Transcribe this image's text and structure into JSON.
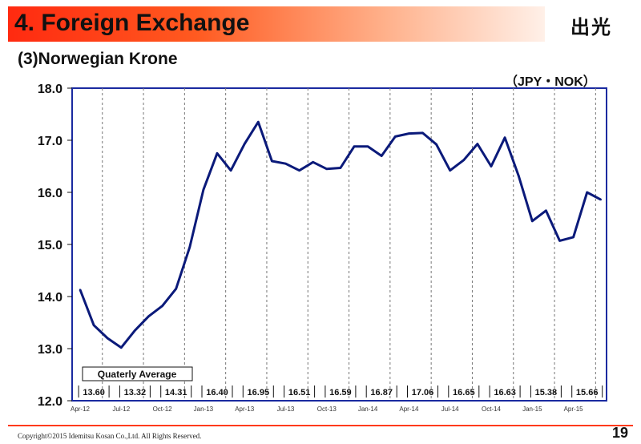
{
  "header": {
    "title": "4. Foreign Exchange",
    "logo_text": "出光"
  },
  "subtitle": "(3)Norwegian Krone",
  "footer": {
    "copyright": "Copyright©2015 Idemitsu Kosan Co.,Ltd. All Rights Reserved.",
    "page_number": "19"
  },
  "colors": {
    "line": "#0b1a7a",
    "frame": "#1a2aa0",
    "header_red": "#ff2a10"
  },
  "chart_data": {
    "type": "line",
    "title": "(3)Norwegian Krone",
    "unit_label": "（JPY・NOK）",
    "ylim": [
      12.0,
      18.0
    ],
    "y_ticks": [
      "12.0",
      "13.0",
      "14.0",
      "15.0",
      "16.0",
      "17.0",
      "18.0"
    ],
    "x_tick_labels": [
      "Apr-12",
      "Jul-12",
      "Oct-12",
      "Jan-13",
      "Apr-13",
      "Jul-13",
      "Oct-13",
      "Jan-14",
      "Apr-14",
      "Jul-14",
      "Oct-14",
      "Jan-15",
      "Apr-15"
    ],
    "grid": "vertical dashed at quarter boundaries",
    "series": [
      {
        "values": [
          14.13,
          13.45,
          13.2,
          13.02,
          13.35,
          13.62,
          13.82,
          14.15,
          14.95,
          16.05,
          16.75,
          16.42,
          16.93,
          17.35,
          16.6,
          16.55,
          16.42,
          16.58,
          16.45,
          16.47,
          16.88,
          16.88,
          16.7,
          17.07,
          17.13,
          17.14,
          16.92,
          16.42,
          16.62,
          16.93,
          16.5,
          17.05,
          16.32,
          15.45,
          15.65,
          15.07,
          15.14,
          16.0,
          15.86
        ]
      }
    ],
    "quarterly_average": {
      "label": "Quaterly Average",
      "values": [
        "13.60",
        "13.32",
        "14.31",
        "16.40",
        "16.95",
        "16.51",
        "16.59",
        "16.87",
        "17.06",
        "16.65",
        "16.63",
        "15.38",
        "15.66"
      ]
    }
  }
}
